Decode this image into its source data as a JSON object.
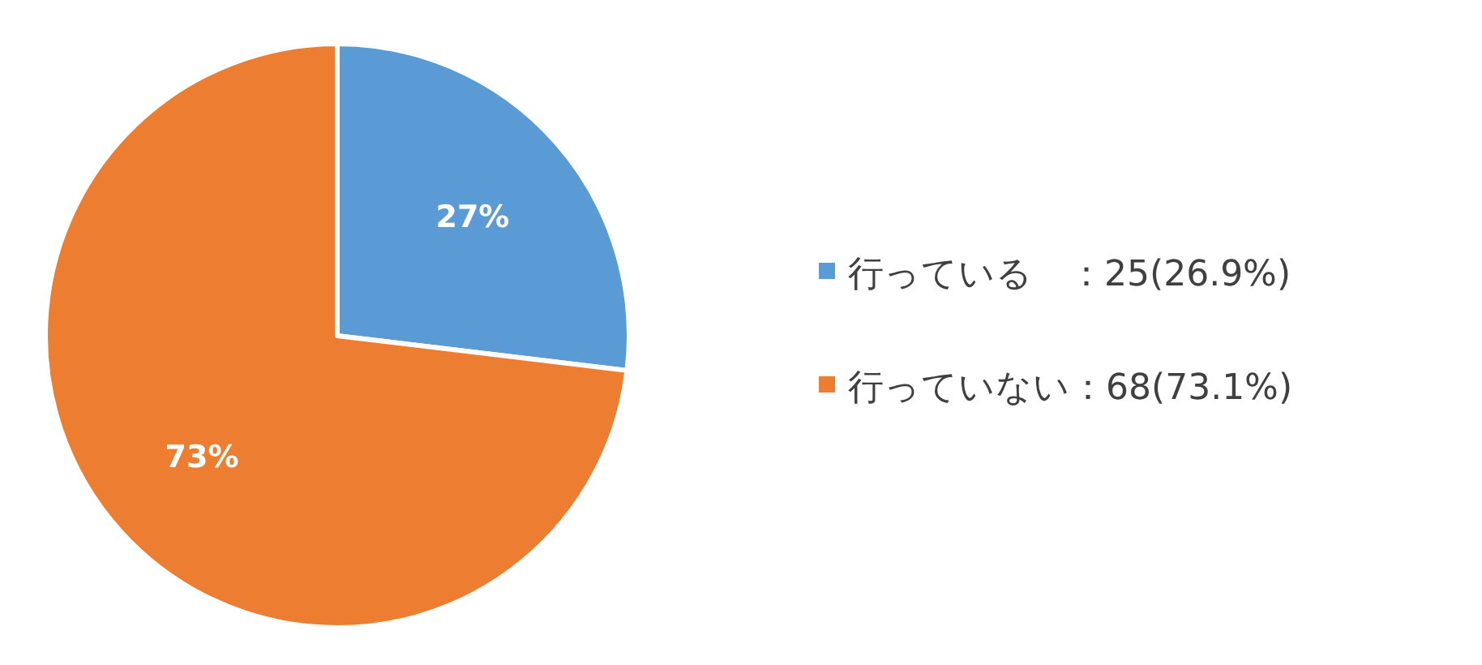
{
  "chart_data": {
    "type": "pie",
    "categories": [
      "行っている　：25(26.9%)",
      "行っていない：68(73.1%)"
    ],
    "values": [
      26.9,
      73.1
    ],
    "colors": [
      "#5b9bd5",
      "#ed7d31"
    ],
    "value_labels": [
      "27%",
      "73%"
    ],
    "legend": "right"
  }
}
